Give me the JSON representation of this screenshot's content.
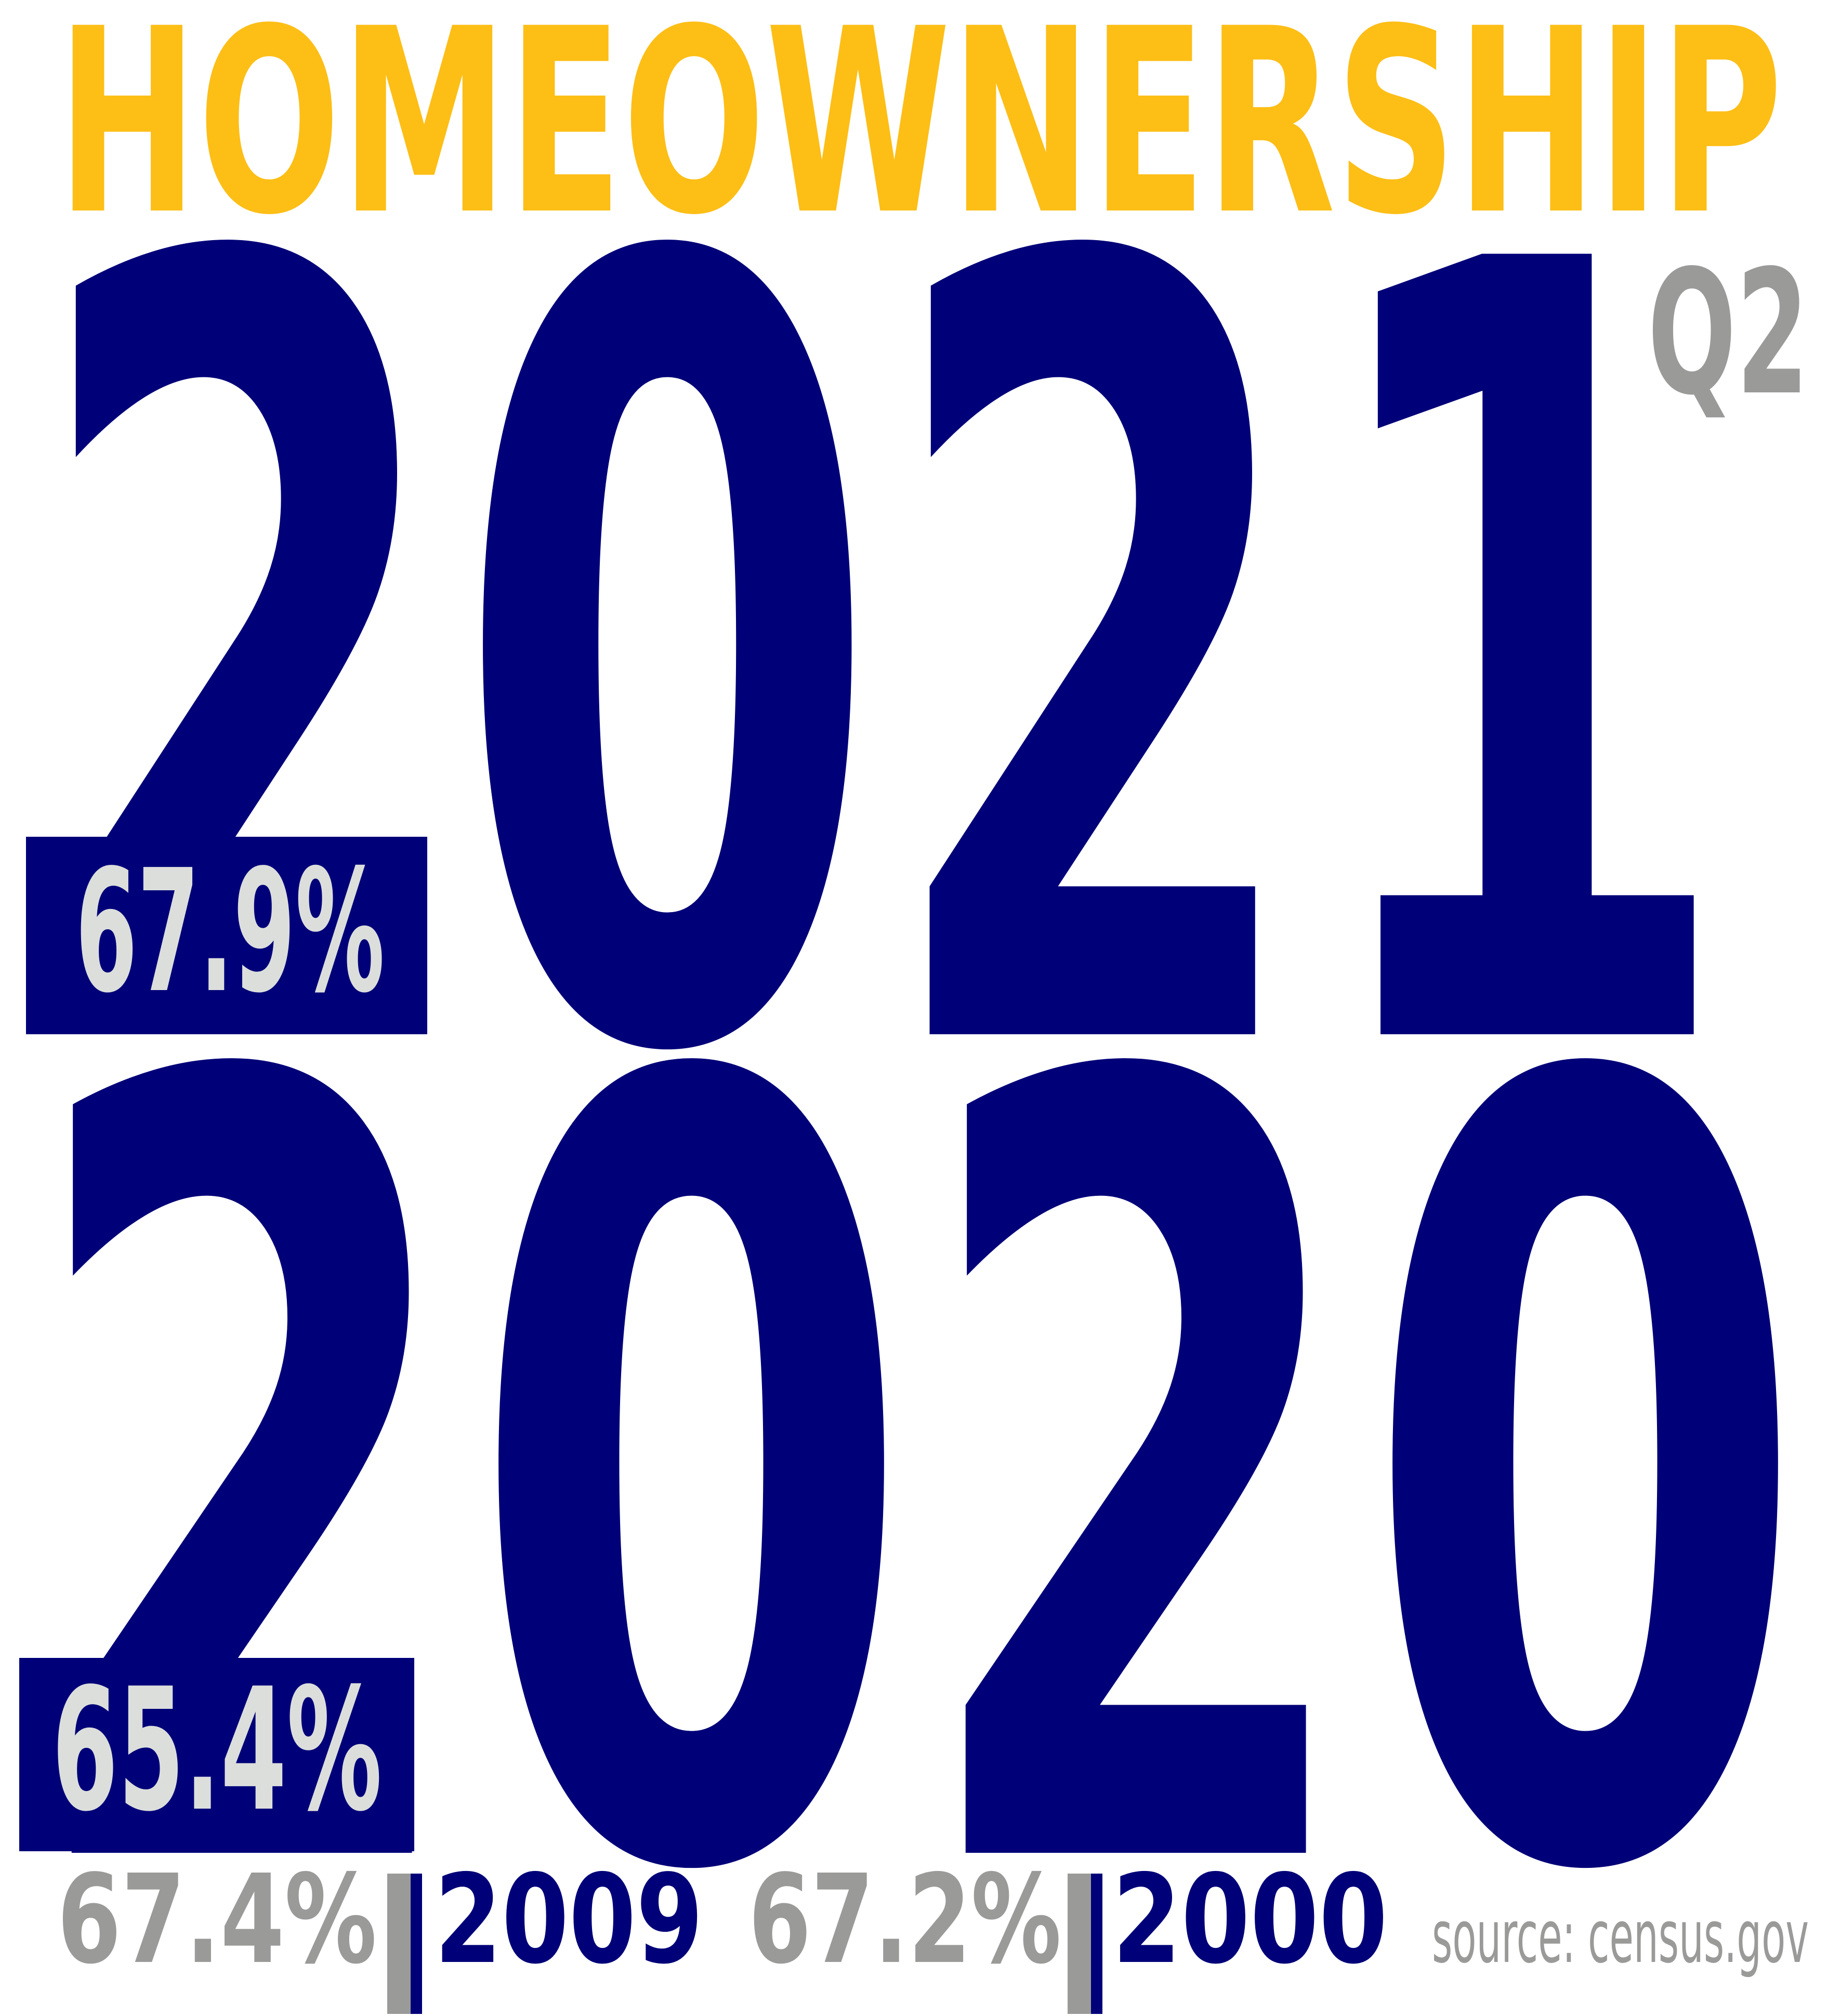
{
  "title": "HOMEOWNERSHIP",
  "featured": [
    {
      "year": "2021",
      "quarter": "Q2",
      "rate": "67.9%"
    },
    {
      "year": "2020",
      "rate": "65.4%"
    }
  ],
  "history": [
    {
      "rate": "67.4%",
      "year": "2009"
    },
    {
      "rate": "67.2%",
      "year": "2000"
    }
  ],
  "source": "source: census.gov"
}
